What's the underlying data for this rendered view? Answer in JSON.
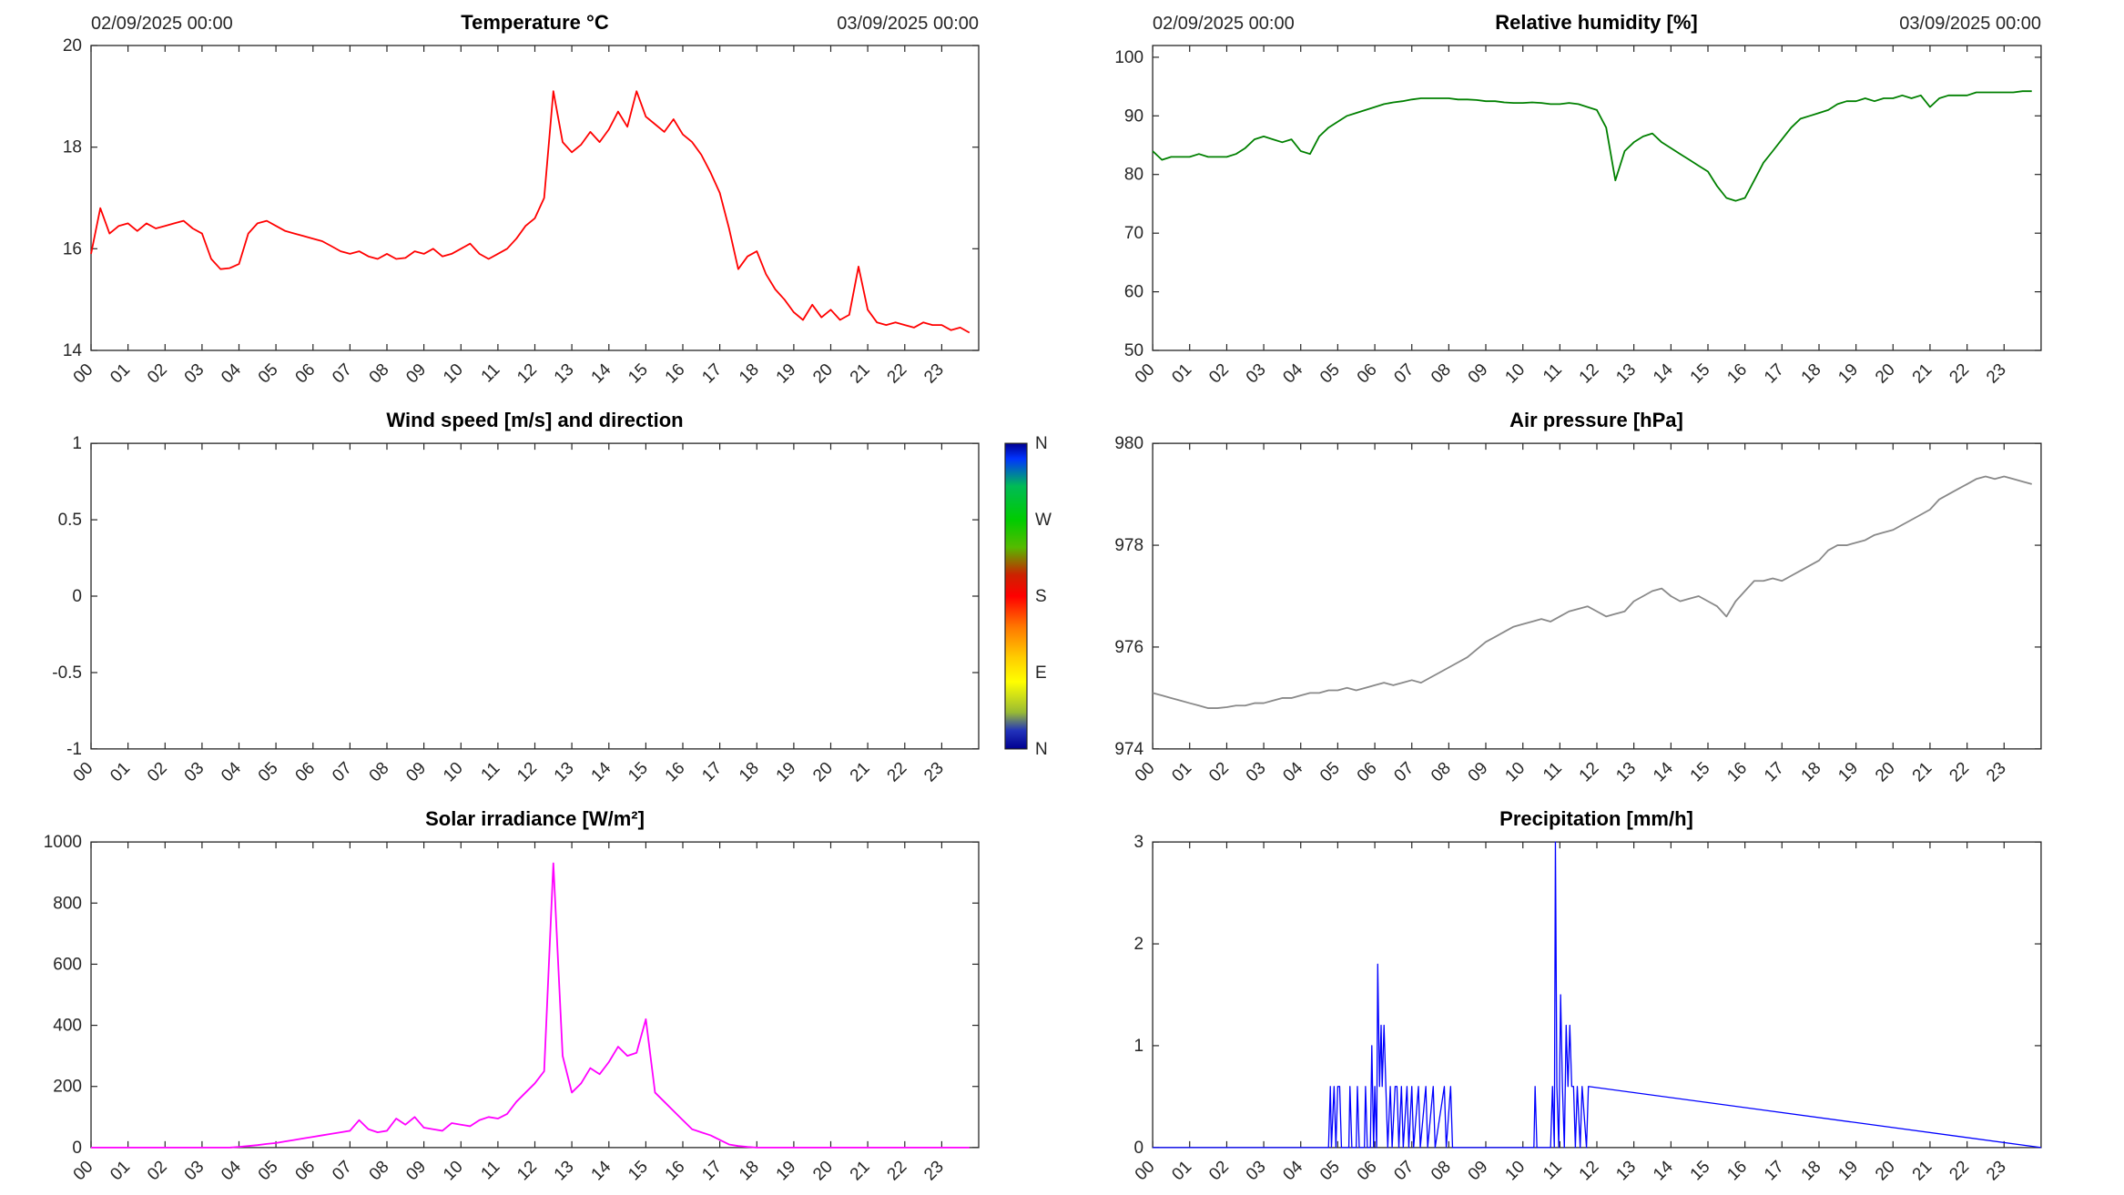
{
  "figure": {
    "background": "#ffffff",
    "axis_color": "#262626"
  },
  "xticks": {
    "values": [
      0,
      1,
      2,
      3,
      4,
      5,
      6,
      7,
      8,
      9,
      10,
      11,
      12,
      13,
      14,
      15,
      16,
      17,
      18,
      19,
      20,
      21,
      22,
      23
    ],
    "labels": [
      "00",
      "01",
      "02",
      "03",
      "04",
      "05",
      "06",
      "07",
      "08",
      "09",
      "10",
      "11",
      "12",
      "13",
      "14",
      "15",
      "16",
      "17",
      "18",
      "19",
      "20",
      "21",
      "22",
      "23"
    ]
  },
  "chart_data": [
    {
      "id": "temperature",
      "type": "line",
      "title": "Temperature °C",
      "top_left_label": "02/09/2025 00:00",
      "top_right_label": "03/09/2025 00:00",
      "color": "#ff0000",
      "line_width": 1.8,
      "xlim": [
        0,
        24
      ],
      "ylim": [
        14,
        20
      ],
      "ytick_values": [
        14,
        16,
        18,
        20
      ],
      "ytick_labels": [
        "14",
        "16",
        "18",
        "20"
      ],
      "x_start": 0,
      "x_step": 0.25,
      "y": [
        15.9,
        16.8,
        16.3,
        16.45,
        16.5,
        16.35,
        16.5,
        16.4,
        16.45,
        16.5,
        16.55,
        16.4,
        16.3,
        15.8,
        15.6,
        15.62,
        15.7,
        16.3,
        16.5,
        16.55,
        16.45,
        16.35,
        16.3,
        16.25,
        16.2,
        16.15,
        16.05,
        15.95,
        15.9,
        15.95,
        15.85,
        15.8,
        15.9,
        15.8,
        15.82,
        15.95,
        15.9,
        16.0,
        15.85,
        15.9,
        16.0,
        16.1,
        15.9,
        15.8,
        15.9,
        16.0,
        16.2,
        16.45,
        16.6,
        17.0,
        19.1,
        18.1,
        17.9,
        18.05,
        18.3,
        18.1,
        18.35,
        18.7,
        18.4,
        19.1,
        18.6,
        18.45,
        18.3,
        18.55,
        18.25,
        18.1,
        17.85,
        17.5,
        17.1,
        16.4,
        15.6,
        15.85,
        15.95,
        15.5,
        15.2,
        15.0,
        14.75,
        14.6,
        14.9,
        14.65,
        14.8,
        14.6,
        14.7,
        15.65,
        14.8,
        14.55,
        14.5,
        14.55,
        14.5,
        14.45,
        14.55,
        14.5,
        14.5,
        14.4,
        14.45,
        14.35
      ]
    },
    {
      "id": "humidity",
      "type": "line",
      "title": "Relative humidity [%]",
      "top_left_label": "02/09/2025 00:00",
      "top_right_label": "03/09/2025 00:00",
      "color": "#008000",
      "line_width": 1.8,
      "xlim": [
        0,
        24
      ],
      "ylim": [
        50,
        102
      ],
      "ytick_values": [
        50,
        60,
        70,
        80,
        90,
        100
      ],
      "ytick_labels": [
        "50",
        "60",
        "70",
        "80",
        "90",
        "100"
      ],
      "x_start": 0,
      "x_step": 0.25,
      "y": [
        84,
        82.5,
        83,
        83,
        83,
        83.5,
        83,
        83,
        83,
        83.5,
        84.5,
        86,
        86.5,
        86,
        85.5,
        86,
        84,
        83.5,
        86.5,
        88,
        89,
        90,
        90.5,
        91,
        91.5,
        92,
        92.3,
        92.5,
        92.8,
        93,
        93,
        93,
        93,
        92.8,
        92.8,
        92.7,
        92.5,
        92.5,
        92.3,
        92.2,
        92.2,
        92.3,
        92.2,
        92,
        92,
        92.2,
        92,
        91.5,
        91,
        88,
        79,
        84,
        85.5,
        86.5,
        87,
        85.5,
        84.5,
        83.5,
        82.5,
        81.5,
        80.5,
        78,
        76,
        75.5,
        76,
        79,
        82,
        84,
        86,
        88,
        89.5,
        90,
        90.5,
        91,
        92,
        92.5,
        92.5,
        93,
        92.5,
        93,
        93,
        93.5,
        93,
        93.5,
        91.5,
        93,
        93.5,
        93.5,
        93.5,
        94,
        94,
        94,
        94,
        94,
        94.2,
        94.2
      ]
    },
    {
      "id": "wind",
      "type": "line",
      "title": "Wind speed [m/s] and direction",
      "color": "#0000ff",
      "line_width": 1.8,
      "xlim": [
        0,
        24
      ],
      "ylim": [
        -1,
        1
      ],
      "ytick_values": [
        -1,
        -0.5,
        0,
        0.5,
        1
      ],
      "ytick_labels": [
        "-1",
        "-0.5",
        "0",
        "0.5",
        "1"
      ],
      "x": [],
      "y": [],
      "colorbar": {
        "labels": [
          "N",
          "W",
          "S",
          "E",
          "N"
        ],
        "stops": [
          [
            "0%",
            "#000090"
          ],
          [
            "5%",
            "#0033ff"
          ],
          [
            "14%",
            "#00bb55"
          ],
          [
            "25%",
            "#00cc00"
          ],
          [
            "34%",
            "#55bb00"
          ],
          [
            "43%",
            "#cc2200"
          ],
          [
            "50%",
            "#ff0000"
          ],
          [
            "60%",
            "#ff7700"
          ],
          [
            "70%",
            "#ffcc00"
          ],
          [
            "78%",
            "#ffff00"
          ],
          [
            "88%",
            "#99bb33"
          ],
          [
            "94%",
            "#2233bb"
          ],
          [
            "100%",
            "#000090"
          ]
        ]
      }
    },
    {
      "id": "pressure",
      "type": "line",
      "title": "Air pressure [hPa]",
      "color": "#898989",
      "line_width": 1.8,
      "xlim": [
        0,
        24
      ],
      "ylim": [
        974,
        980
      ],
      "ytick_values": [
        974,
        976,
        978,
        980
      ],
      "ytick_labels": [
        "974",
        "976",
        "978",
        "980"
      ],
      "x_start": 0,
      "x_step": 0.25,
      "y": [
        975.1,
        975.05,
        975.0,
        974.95,
        974.9,
        974.85,
        974.8,
        974.8,
        974.82,
        974.85,
        974.85,
        974.9,
        974.9,
        974.95,
        975.0,
        975.0,
        975.05,
        975.1,
        975.1,
        975.15,
        975.15,
        975.2,
        975.15,
        975.2,
        975.25,
        975.3,
        975.25,
        975.3,
        975.35,
        975.3,
        975.4,
        975.5,
        975.6,
        975.7,
        975.8,
        975.95,
        976.1,
        976.2,
        976.3,
        976.4,
        976.45,
        976.5,
        976.55,
        976.5,
        976.6,
        976.7,
        976.75,
        976.8,
        976.7,
        976.6,
        976.65,
        976.7,
        976.9,
        977.0,
        977.1,
        977.15,
        977.0,
        976.9,
        976.95,
        977.0,
        976.9,
        976.8,
        976.6,
        976.9,
        977.1,
        977.3,
        977.3,
        977.35,
        977.3,
        977.4,
        977.5,
        977.6,
        977.7,
        977.9,
        978.0,
        978.0,
        978.05,
        978.1,
        978.2,
        978.25,
        978.3,
        978.4,
        978.5,
        978.6,
        978.7,
        978.9,
        979.0,
        979.1,
        979.2,
        979.3,
        979.35,
        979.3,
        979.35,
        979.3,
        979.25,
        979.2
      ]
    },
    {
      "id": "solar",
      "type": "line",
      "title": "Solar irradiance [W/m²]",
      "color": "#ff00ff",
      "line_width": 1.8,
      "xlim": [
        0,
        24
      ],
      "ylim": [
        0,
        1000
      ],
      "ytick_values": [
        0,
        200,
        400,
        600,
        800,
        1000
      ],
      "ytick_labels": [
        "0",
        "200",
        "400",
        "600",
        "800",
        "1000"
      ],
      "x_start": 0,
      "x_step": 0.25,
      "y": [
        0,
        0,
        0,
        0,
        0,
        0,
        0,
        0,
        0,
        0,
        0,
        0,
        0,
        0,
        0,
        0,
        2,
        5,
        8,
        12,
        15,
        20,
        25,
        30,
        35,
        40,
        45,
        50,
        55,
        90,
        60,
        50,
        55,
        95,
        75,
        100,
        65,
        60,
        55,
        80,
        75,
        70,
        90,
        100,
        95,
        110,
        150,
        180,
        210,
        250,
        930,
        300,
        180,
        210,
        260,
        240,
        280,
        330,
        300,
        310,
        420,
        180,
        150,
        120,
        90,
        60,
        50,
        40,
        25,
        10,
        5,
        2,
        0,
        0,
        0,
        0,
        0,
        0,
        0,
        0,
        0,
        0,
        0,
        0,
        0,
        0,
        0,
        0,
        0,
        0,
        0,
        0,
        0,
        0,
        0,
        0
      ]
    },
    {
      "id": "precipitation",
      "type": "line",
      "title": "Precipitation [mm/h]",
      "color": "#0000ff",
      "line_width": 1.3,
      "xlim": [
        0,
        24
      ],
      "ylim": [
        0,
        3
      ],
      "ytick_values": [
        0,
        1,
        2,
        3
      ],
      "ytick_labels": [
        "0",
        "1",
        "2",
        "3"
      ],
      "x": [
        0,
        4.75,
        4.8,
        4.83,
        4.9,
        4.95,
        5.0,
        5.05,
        5.1,
        5.3,
        5.33,
        5.38,
        5.5,
        5.53,
        5.58,
        5.72,
        5.75,
        5.8,
        5.88,
        5.92,
        5.97,
        6.0,
        6.05,
        6.08,
        6.13,
        6.17,
        6.2,
        6.25,
        6.3,
        6.35,
        6.42,
        6.47,
        6.55,
        6.6,
        6.65,
        6.72,
        6.77,
        6.87,
        6.92,
        7.0,
        7.05,
        7.18,
        7.23,
        7.38,
        7.43,
        7.58,
        7.63,
        7.88,
        7.93,
        8.05,
        8.1,
        10.3,
        10.33,
        10.38,
        10.75,
        10.8,
        10.85,
        10.88,
        10.92,
        10.97,
        11.02,
        11.07,
        11.12,
        11.17,
        11.22,
        11.27,
        11.32,
        11.37,
        11.42,
        11.47,
        11.55,
        11.6,
        11.72,
        11.77,
        24
      ],
      "y": [
        0,
        0,
        0.6,
        0,
        0.6,
        0,
        0.6,
        0.6,
        0,
        0,
        0.6,
        0,
        0,
        0.6,
        0,
        0,
        0.6,
        0,
        0,
        1.0,
        0,
        0.6,
        0,
        1.8,
        0.6,
        1.2,
        0.6,
        1.2,
        0.6,
        0,
        0.6,
        0,
        0.6,
        0.6,
        0,
        0.6,
        0,
        0.6,
        0,
        0.6,
        0,
        0.6,
        0,
        0.6,
        0,
        0.6,
        0,
        0.6,
        0,
        0.6,
        0,
        0,
        0.6,
        0,
        0,
        0.6,
        0,
        3.0,
        0.6,
        0,
        1.5,
        0.6,
        0,
        1.2,
        0.6,
        1.2,
        0.6,
        0.6,
        0,
        0.6,
        0,
        0.6,
        0,
        0.6,
        0
      ]
    }
  ]
}
